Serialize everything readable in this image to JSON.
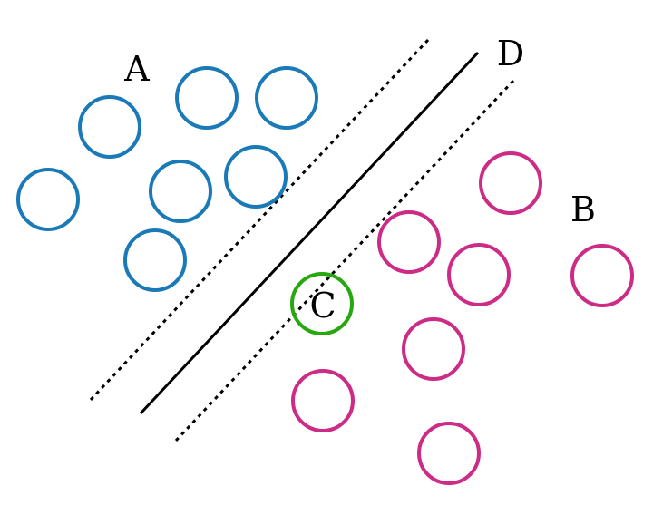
{
  "labels": {
    "a": "A",
    "b": "B",
    "c": "C",
    "d": "D"
  },
  "colors": {
    "class_a": "#1a7ab8",
    "class_b": "#cc2b86",
    "point_c": "#27a80f",
    "line": "#000000"
  }
}
